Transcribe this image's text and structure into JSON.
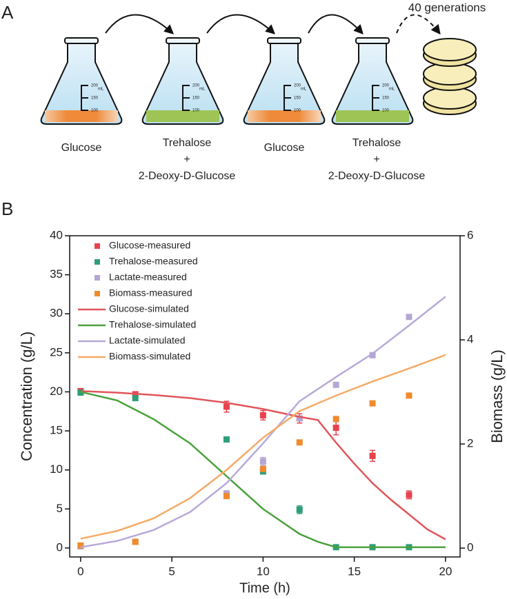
{
  "panel_a": {
    "label": "A",
    "annotation": "40 generations",
    "flask_scale": [
      "200",
      "150",
      "100"
    ],
    "flask_unit": "mL",
    "flasks": [
      {
        "lines": [
          "Glucose"
        ]
      },
      {
        "lines": [
          "Trehalose",
          "+",
          "2-Deoxy-D-Glucose"
        ]
      },
      {
        "lines": [
          "Glucose"
        ]
      },
      {
        "lines": [
          "Trehalose",
          "+",
          "2-Deoxy-D-Glucose"
        ]
      }
    ]
  },
  "chart_data": {
    "type": "line",
    "panel_label": "B",
    "xlabel": "Time (h)",
    "ylabel": "Concentration (g/L)",
    "y2label": "Biomass (g/L)",
    "xlim": [
      -0.6,
      20.8
    ],
    "ylim": [
      -1.15,
      40
    ],
    "y2lim": [
      -0.17,
      6
    ],
    "xticks": [
      0,
      5,
      10,
      15,
      20
    ],
    "yticks": [
      0,
      5,
      10,
      15,
      20,
      25,
      30,
      35,
      40
    ],
    "y2ticks": [
      0,
      2,
      4,
      6
    ],
    "series": [
      {
        "name": "Glucose-measured",
        "style": "marker",
        "color": "#e8424e",
        "x": [
          0,
          3,
          8,
          10,
          12,
          14,
          16,
          18
        ],
        "values": [
          20.1,
          19.7,
          18.1,
          17.0,
          16.6,
          15.4,
          11.8,
          6.8
        ],
        "errors": [
          0.3,
          0.3,
          0.7,
          0.6,
          0.6,
          0.9,
          0.7,
          0.5
        ]
      },
      {
        "name": "Trehalose-measured",
        "style": "marker",
        "color": "#2f9e78",
        "x": [
          0,
          3,
          8,
          10,
          12,
          14,
          16,
          18
        ],
        "values": [
          19.9,
          19.2,
          13.9,
          9.8,
          4.9,
          0.1,
          0.1,
          0.1
        ],
        "errors": [
          0.2,
          0.2,
          0.2,
          0.3,
          0.5,
          0.1,
          0.1,
          0.1
        ]
      },
      {
        "name": "Lactate-measured",
        "style": "marker",
        "color": "#b3a6d4",
        "x": [
          0,
          3,
          8,
          10,
          12,
          14,
          16,
          18
        ],
        "values": [
          0.2,
          0.8,
          7.0,
          11.1,
          16.6,
          20.9,
          24.7,
          29.6
        ],
        "errors": [
          0.2,
          0.2,
          0.2,
          0.5,
          0.3,
          0.2,
          0.2,
          0.2
        ]
      },
      {
        "name": "Biomass-measured",
        "style": "marker",
        "color": "#f08a2c",
        "axis": "y2",
        "x": [
          0,
          3,
          8,
          10,
          12,
          14,
          16,
          18
        ],
        "values": [
          0.05,
          0.12,
          1.0,
          1.52,
          2.03,
          2.48,
          2.78,
          2.93
        ]
      },
      {
        "name": "Glucose-simulated",
        "style": "line",
        "color": "#e0555a",
        "x": [
          0,
          2,
          4,
          6,
          8,
          10,
          12,
          13,
          14,
          15,
          16,
          17,
          18,
          19,
          20
        ],
        "values": [
          20.1,
          19.9,
          19.6,
          19.2,
          18.6,
          17.8,
          16.8,
          16.4,
          13.5,
          10.8,
          8.3,
          6.2,
          4.3,
          2.4,
          1.1
        ]
      },
      {
        "name": "Trehalose-simulated",
        "style": "line",
        "color": "#4aa13c",
        "x": [
          0,
          2,
          4,
          6,
          8,
          10,
          12,
          13,
          14,
          16,
          18,
          20
        ],
        "values": [
          20.0,
          18.9,
          16.5,
          13.4,
          9.2,
          5.0,
          1.8,
          0.8,
          0.1,
          0.1,
          0.1,
          0.1
        ]
      },
      {
        "name": "Lactate-simulated",
        "style": "line",
        "color": "#b8a9d9",
        "x": [
          0,
          2,
          4,
          6,
          8,
          10,
          12,
          14,
          16,
          18,
          20
        ],
        "values": [
          0.1,
          0.9,
          2.3,
          4.6,
          8.3,
          13.4,
          18.8,
          21.9,
          24.9,
          28.5,
          32.2
        ]
      },
      {
        "name": "Biomass-simulated",
        "style": "line",
        "color": "#f5aa66",
        "axis": "y2",
        "x": [
          0,
          2,
          4,
          6,
          8,
          10,
          12,
          14,
          16,
          18,
          20
        ],
        "values": [
          0.18,
          0.33,
          0.57,
          0.96,
          1.5,
          2.12,
          2.63,
          2.93,
          3.2,
          3.45,
          3.71
        ]
      }
    ]
  }
}
